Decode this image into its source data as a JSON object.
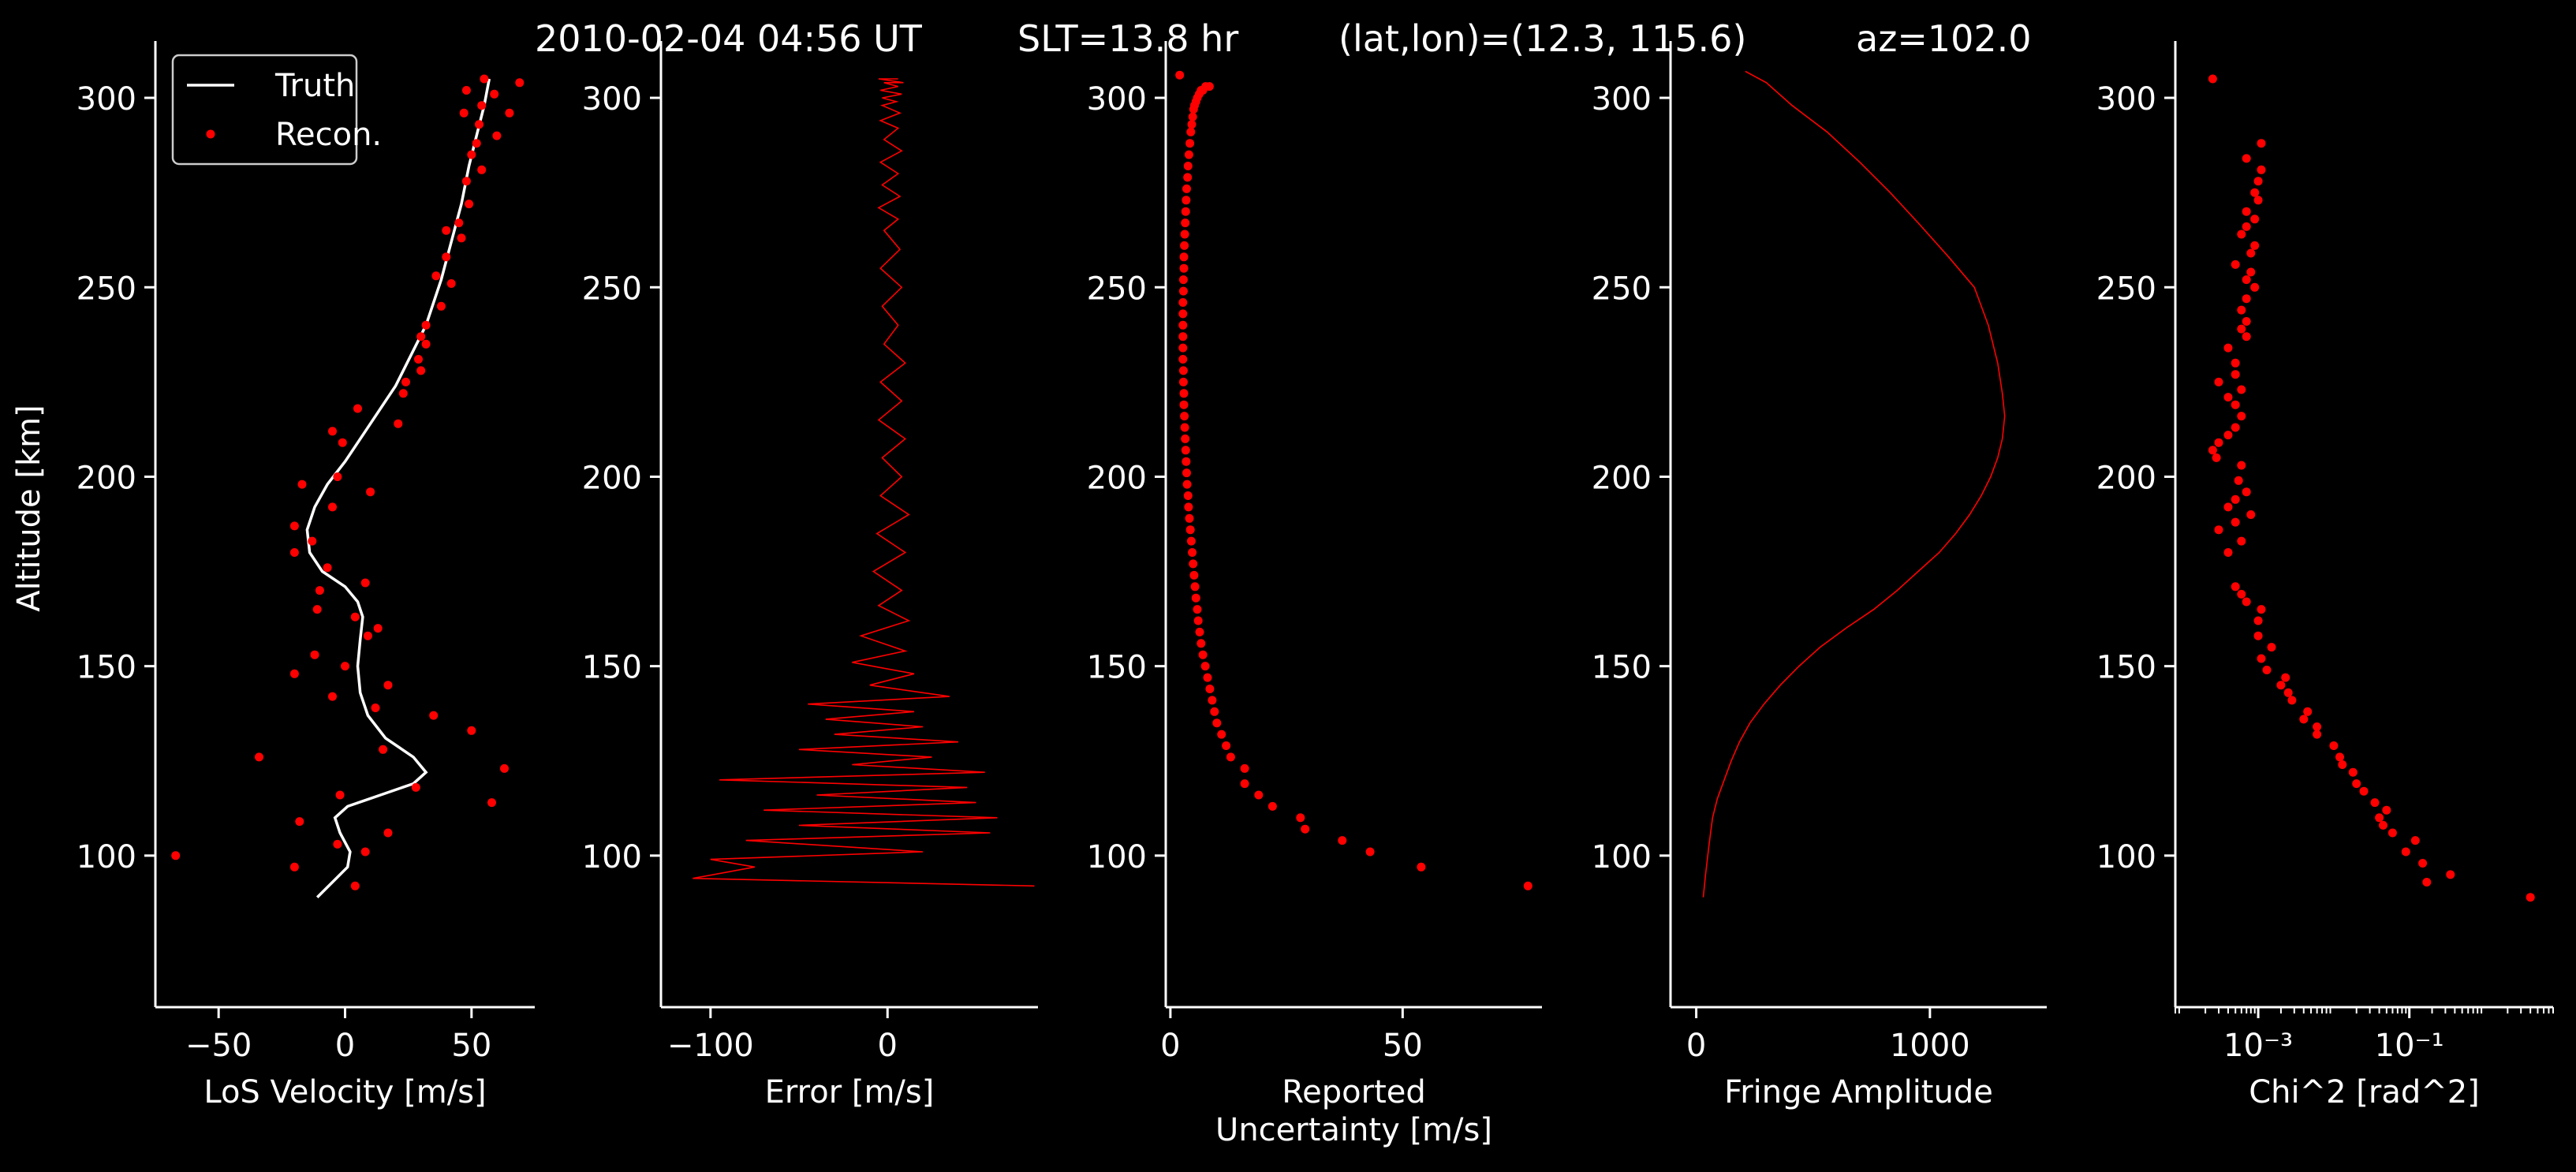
{
  "title": {
    "datetime": "2010-02-04 04:56 UT",
    "slt": "SLT=13.8 hr",
    "latlon": "(lat,lon)=(12.3, 115.6)",
    "az": "az=102.0"
  },
  "colors": {
    "background": "#000000",
    "foreground": "#ffffff",
    "data": "#ff0000",
    "truth": "#ffffff"
  },
  "chart_data": [
    {
      "type": "line",
      "xlabel": "LoS Velocity [m/s]",
      "ylabel": "Altitude [km]",
      "xlim": [
        -75,
        75
      ],
      "ylim": [
        60,
        315
      ],
      "xticks": [
        -50,
        0,
        50
      ],
      "xtick_labels": [
        "−50",
        "0",
        "50"
      ],
      "yticks": [
        100,
        150,
        200,
        250,
        300
      ],
      "ytick_labels": [
        "100",
        "150",
        "200",
        "250",
        "300"
      ],
      "legend": {
        "placement": "top-left",
        "entries": [
          "Truth",
          "Recon."
        ]
      },
      "series": [
        {
          "name": "Truth",
          "style": "line",
          "color": "#ffffff",
          "x": [
            -11,
            -5,
            1,
            2,
            -2,
            -4,
            1,
            14,
            27,
            32,
            27,
            16,
            9,
            6,
            5,
            6,
            7,
            5,
            0,
            -9,
            -14,
            -15,
            -12,
            -7,
            0,
            8,
            20,
            32,
            38,
            42,
            46,
            49,
            52,
            55,
            57
          ],
          "y": [
            89,
            93,
            97,
            101,
            106,
            110,
            113,
            116,
            119,
            122,
            126,
            131,
            137,
            143,
            150,
            157,
            163,
            167,
            171,
            175,
            180,
            186,
            192,
            198,
            204,
            212,
            224,
            240,
            252,
            262,
            272,
            282,
            290,
            298,
            305
          ]
        },
        {
          "name": "Recon.",
          "style": "points",
          "color": "#ff0000",
          "x": [
            4,
            -67,
            -20,
            8,
            -3,
            17,
            -18,
            58,
            -2,
            28,
            63,
            -34,
            15,
            50,
            35,
            -5,
            12,
            17,
            -20,
            0,
            -12,
            9,
            13,
            4,
            -11,
            -10,
            8,
            -7,
            -20,
            -13,
            -20,
            -5,
            10,
            -17,
            -3,
            -1,
            -5,
            21,
            5,
            23,
            24,
            30,
            29,
            32,
            30,
            32,
            38,
            42,
            36,
            40,
            46,
            40,
            45,
            49,
            48,
            54,
            50,
            52,
            60,
            53,
            65,
            47,
            54,
            48,
            59,
            55,
            69
          ],
          "y": [
            92,
            100,
            97,
            101,
            103,
            106,
            109,
            114,
            116,
            118,
            123,
            126,
            128,
            133,
            137,
            142,
            139,
            145,
            148,
            150,
            153,
            158,
            160,
            163,
            165,
            170,
            172,
            176,
            180,
            183,
            187,
            192,
            196,
            198,
            200,
            209,
            212,
            214,
            218,
            222,
            225,
            228,
            231,
            235,
            237,
            240,
            245,
            251,
            253,
            258,
            263,
            265,
            267,
            272,
            278,
            281,
            285,
            288,
            290,
            293,
            296,
            296,
            298,
            302,
            301,
            305,
            304
          ]
        }
      ]
    },
    {
      "type": "line",
      "xlabel": "Error [m/s]",
      "xlim": [
        -128,
        85
      ],
      "ylim": [
        60,
        315
      ],
      "xticks": [
        -100,
        0
      ],
      "xtick_labels": [
        "−100",
        "0"
      ],
      "yticks": [
        100,
        150,
        200,
        250,
        300
      ],
      "ytick_labels": [
        "100",
        "150",
        "200",
        "250",
        "300"
      ],
      "series": [
        {
          "color": "#ff0000",
          "style": "line",
          "x": [
            83,
            -110,
            -75,
            -100,
            20,
            -80,
            58,
            -50,
            62,
            -70,
            50,
            -40,
            45,
            -95,
            55,
            -20,
            25,
            -50,
            40,
            -30,
            20,
            -35,
            15,
            -45,
            35,
            -10,
            15,
            -20,
            10,
            -15,
            12,
            -5,
            8,
            -8,
            10,
            -6,
            12,
            -4,
            8,
            -3,
            10,
            -5,
            8,
            -4,
            10,
            -2,
            6,
            -3,
            8,
            -4,
            7,
            -2,
            6,
            -5,
            7,
            -3,
            6,
            -4,
            8,
            -2,
            6,
            -4,
            7,
            -3,
            5,
            -3,
            8,
            -4,
            6,
            -2,
            9,
            -5,
            6
          ],
          "y": [
            92,
            94,
            97,
            99,
            101,
            104,
            106,
            108,
            110,
            112,
            114,
            116,
            118,
            120,
            122,
            124,
            126,
            128,
            130,
            132,
            134,
            136,
            138,
            140,
            142,
            145,
            148,
            151,
            154,
            158,
            162,
            166,
            170,
            175,
            180,
            185,
            190,
            195,
            200,
            205,
            210,
            215,
            220,
            225,
            230,
            235,
            240,
            245,
            250,
            255,
            260,
            265,
            268,
            271,
            274,
            277,
            280,
            283,
            286,
            289,
            292,
            294,
            296,
            298,
            299,
            300,
            301,
            302,
            303,
            304,
            304,
            305,
            305
          ]
        }
      ]
    },
    {
      "type": "scatter",
      "xlabel": "Reported\nUncertainty [m/s]",
      "xlim": [
        -1,
        80
      ],
      "ylim": [
        60,
        315
      ],
      "xticks": [
        0,
        50
      ],
      "xtick_labels": [
        "0",
        "50"
      ],
      "yticks": [
        100,
        150,
        200,
        250,
        300
      ],
      "ytick_labels": [
        "100",
        "150",
        "200",
        "250",
        "300"
      ],
      "series": [
        {
          "color": "#ff0000",
          "style": "points",
          "x": [
            77,
            54,
            43,
            37,
            29,
            28,
            22,
            19,
            16,
            16,
            13,
            12,
            11,
            10,
            9.5,
            9,
            8.5,
            8,
            7.5,
            7,
            6.6,
            6.3,
            6,
            5.8,
            5.5,
            5.3,
            5.1,
            4.9,
            4.7,
            4.5,
            4.3,
            4.1,
            3.9,
            3.8,
            3.6,
            3.5,
            3.4,
            3.3,
            3.2,
            3.1,
            3.0,
            2.9,
            2.9,
            2.8,
            2.8,
            2.7,
            2.7,
            2.7,
            2.7,
            2.7,
            2.7,
            2.8,
            2.8,
            2.9,
            2.9,
            3.0,
            3.1,
            3.2,
            3.3,
            3.4,
            3.5,
            3.7,
            3.8,
            4.0,
            4.2,
            4.4,
            4.6,
            4.8,
            5.0,
            5.2,
            5.5,
            5.8,
            6.2,
            6.6,
            7.0,
            7.6,
            8.4,
            2
          ],
          "y": [
            92,
            97,
            101,
            104,
            107,
            110,
            113,
            116,
            119,
            123,
            126,
            129,
            132,
            135,
            138,
            141,
            144,
            147,
            150,
            153,
            156,
            159,
            162,
            165,
            168,
            171,
            174,
            177,
            180,
            183,
            186,
            189,
            192,
            195,
            198,
            201,
            204,
            207,
            210,
            213,
            216,
            219,
            222,
            225,
            228,
            231,
            234,
            237,
            240,
            243,
            246,
            249,
            252,
            255,
            258,
            261,
            264,
            267,
            270,
            273,
            276,
            279,
            282,
            285,
            288,
            291,
            293,
            295,
            297,
            298,
            299,
            300,
            301,
            302,
            302,
            303,
            303,
            306
          ]
        }
      ]
    },
    {
      "type": "line",
      "xlabel": "Fringe Amplitude",
      "xlim": [
        -110,
        1500
      ],
      "ylim": [
        60,
        315
      ],
      "xticks": [
        0,
        1000
      ],
      "xtick_labels": [
        "0",
        "1000"
      ],
      "yticks": [
        100,
        150,
        200,
        250,
        300
      ],
      "ytick_labels": [
        "100",
        "150",
        "200",
        "250",
        "300"
      ],
      "series": [
        {
          "color": "#ff0000",
          "style": "line",
          "x": [
            30,
            40,
            55,
            70,
            90,
            120,
            150,
            185,
            230,
            290,
            360,
            440,
            530,
            640,
            760,
            860,
            950,
            1040,
            1110,
            1170,
            1220,
            1260,
            1290,
            1310,
            1320,
            1310,
            1290,
            1250,
            1190,
            1080,
            950,
            830,
            700,
            560,
            410,
            300,
            210
          ],
          "y": [
            89,
            95,
            103,
            110,
            115,
            120,
            125,
            130,
            135,
            140,
            145,
            150,
            155,
            160,
            165,
            170,
            175,
            180,
            185,
            190,
            195,
            200,
            205,
            210,
            216,
            222,
            230,
            240,
            250,
            258,
            267,
            275,
            283,
            291,
            298,
            304,
            307
          ]
        }
      ]
    },
    {
      "type": "scatter",
      "xlabel": "Chi^2 [rad^2]",
      "xscale": "log",
      "xlim": [
        8e-05,
        8
      ],
      "ylim": [
        60,
        315
      ],
      "xticks": [
        0.001,
        0.1
      ],
      "xtick_labels": [
        "10⁻³",
        "10⁻¹"
      ],
      "yticks": [
        100,
        150,
        200,
        250,
        300
      ],
      "ytick_labels": [
        "100",
        "150",
        "200",
        "250",
        "300"
      ],
      "series": [
        {
          "color": "#ff0000",
          "style": "points",
          "x": [
            4,
            0.35,
            0.17,
            0.15,
            0.09,
            0.12,
            0.06,
            0.045,
            0.04,
            0.05,
            0.035,
            0.025,
            0.02,
            0.018,
            0.013,
            0.012,
            0.01,
            0.006,
            0.006,
            0.004,
            0.0045,
            0.0028,
            0.0025,
            0.002,
            0.0023,
            0.0013,
            0.0011,
            0.0015,
            0.001,
            0.001,
            0.0011,
            0.0007,
            0.0006,
            0.0005,
            0.0004,
            0.0006,
            0.0003,
            0.0005,
            0.0008,
            0.0004,
            0.0005,
            0.0007,
            0.00055,
            0.0006,
            0.00028,
            0.00025,
            0.0003,
            0.0004,
            0.0005,
            0.0006,
            0.0005,
            0.0004,
            0.0006,
            0.0003,
            0.0005,
            0.0005,
            0.0004,
            0.0007,
            0.0006,
            0.0007,
            0.0006,
            0.0007,
            0.0009,
            0.0007,
            0.0008,
            0.0005,
            0.0008,
            0.0009,
            0.0006,
            0.0007,
            0.0009,
            0.0007,
            0.001,
            0.0009,
            0.001,
            0.0011,
            0.0007,
            0.0011,
            0.00025
          ],
          "y": [
            89,
            95,
            93,
            98,
            101,
            104,
            106,
            108,
            110,
            112,
            114,
            117,
            119,
            122,
            124,
            126,
            129,
            132,
            134,
            136,
            138,
            141,
            143,
            145,
            147,
            149,
            152,
            155,
            158,
            162,
            165,
            167,
            169,
            171,
            180,
            183,
            186,
            188,
            190,
            192,
            194,
            196,
            199,
            203,
            205,
            207,
            209,
            211,
            213,
            216,
            219,
            221,
            223,
            225,
            227,
            230,
            234,
            237,
            239,
            241,
            244,
            247,
            250,
            252,
            254,
            256,
            259,
            261,
            264,
            266,
            268,
            270,
            273,
            275,
            278,
            281,
            284,
            288,
            305
          ]
        }
      ]
    }
  ]
}
